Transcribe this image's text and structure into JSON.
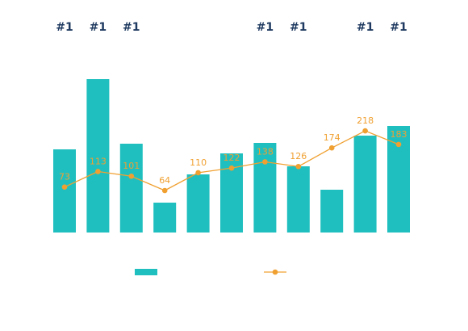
{
  "chart_data": {
    "type": "bar",
    "categories": [
      "",
      "",
      "",
      "",
      "",
      "",
      "",
      "",
      "",
      "",
      ""
    ],
    "title": "",
    "xlabel": "",
    "ylabel": "",
    "grid": false,
    "legend_position": "bottom-center",
    "series": [
      {
        "type": "bar",
        "color": "#20bfbf",
        "values": [
          103,
          190,
          110,
          37,
          72,
          98,
          111,
          82,
          53,
          120,
          132
        ]
      },
      {
        "type": "line",
        "color": "#f0a030",
        "marker": "circle",
        "values": [
          73,
          113,
          101,
          64,
          110,
          122,
          138,
          126,
          174,
          218,
          183
        ],
        "data_labels": [
          "73",
          "113",
          "101",
          "64",
          "110",
          "122",
          "138",
          "126",
          "174",
          "218",
          "183"
        ]
      }
    ],
    "rank_labels": [
      "#1",
      "#1",
      "#1",
      "",
      "",
      "",
      "#1",
      "#1",
      "",
      "#1",
      "#1"
    ],
    "colors": {
      "bar": "#20bfbf",
      "line": "#f0a030",
      "rank_text": "#1f3a60"
    }
  }
}
